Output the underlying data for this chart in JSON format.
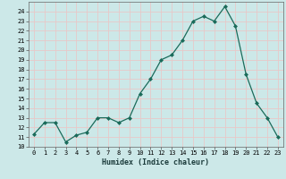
{
  "x": [
    0,
    1,
    2,
    3,
    4,
    5,
    6,
    7,
    8,
    9,
    10,
    11,
    12,
    13,
    14,
    15,
    16,
    17,
    18,
    19,
    20,
    21,
    22,
    23
  ],
  "y": [
    11.3,
    12.5,
    12.5,
    10.5,
    11.2,
    11.5,
    13.0,
    13.0,
    12.5,
    13.0,
    15.5,
    17.0,
    19.0,
    19.5,
    21.0,
    23.0,
    23.5,
    23.0,
    24.5,
    22.5,
    17.5,
    14.5,
    13.0,
    11.0
  ],
  "xlabel": "Humidex (Indice chaleur)",
  "ylim": [
    10,
    25
  ],
  "xlim": [
    -0.5,
    23.5
  ],
  "yticks": [
    10,
    11,
    12,
    13,
    14,
    15,
    16,
    17,
    18,
    19,
    20,
    21,
    22,
    23,
    24
  ],
  "xticks": [
    0,
    1,
    2,
    3,
    4,
    5,
    6,
    7,
    8,
    9,
    10,
    11,
    12,
    13,
    14,
    15,
    16,
    17,
    18,
    19,
    20,
    21,
    22,
    23
  ],
  "line_color": "#1a6b5a",
  "marker": "D",
  "marker_size": 2.0,
  "bg_color": "#cce8e8",
  "grid_color": "#e8c8c8",
  "xlabel_fontsize": 6.0,
  "tick_fontsize": 5.0
}
